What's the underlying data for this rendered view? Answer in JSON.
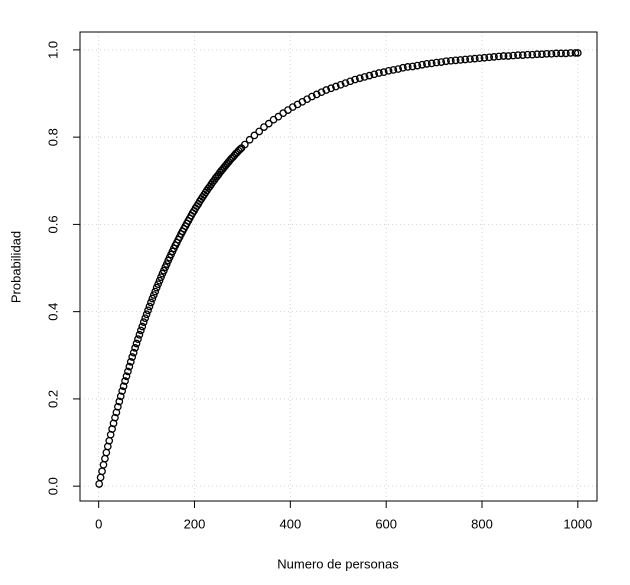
{
  "chart_data": {
    "type": "scatter",
    "xlabel": "Numero de personas",
    "ylabel": "Probabilidad",
    "x": [
      1,
      4,
      7,
      10,
      13,
      16,
      19,
      22,
      25,
      28,
      31,
      34,
      37,
      40,
      43,
      46,
      49,
      52,
      55,
      58,
      61,
      64,
      67,
      70,
      73,
      76,
      79,
      82,
      85,
      88,
      91,
      94,
      97,
      100,
      103,
      106,
      109,
      112,
      115,
      118,
      121,
      124,
      127,
      130,
      133,
      136,
      139,
      142,
      145,
      148,
      151,
      154,
      157,
      160,
      163,
      166,
      169,
      172,
      175,
      178,
      181,
      184,
      187,
      190,
      193,
      196,
      199,
      202,
      205,
      208,
      211,
      214,
      217,
      220,
      223,
      226,
      229,
      232,
      235,
      238,
      241,
      244,
      247,
      250,
      253,
      256,
      259,
      262,
      265,
      268,
      271,
      274,
      277,
      280,
      283,
      286,
      289,
      292,
      295,
      298,
      305,
      315,
      325,
      335,
      345,
      355,
      365,
      375,
      385,
      395,
      405,
      415,
      425,
      435,
      445,
      455,
      465,
      475,
      485,
      495,
      505,
      515,
      525,
      535,
      545,
      555,
      565,
      575,
      585,
      595,
      605,
      615,
      625,
      635,
      645,
      655,
      665,
      675,
      685,
      695,
      705,
      715,
      725,
      735,
      745,
      755,
      765,
      775,
      785,
      795,
      805,
      815,
      825,
      835,
      845,
      855,
      865,
      875,
      885,
      895,
      905,
      915,
      925,
      935,
      945,
      955,
      965,
      975,
      985,
      995,
      1000
    ],
    "values": [
      0.005,
      0.02,
      0.034,
      0.049,
      0.063,
      0.077,
      0.091,
      0.104,
      0.118,
      0.131,
      0.144,
      0.157,
      0.169,
      0.182,
      0.194,
      0.206,
      0.218,
      0.229,
      0.241,
      0.252,
      0.263,
      0.274,
      0.285,
      0.296,
      0.306,
      0.317,
      0.327,
      0.337,
      0.347,
      0.357,
      0.366,
      0.376,
      0.385,
      0.394,
      0.403,
      0.412,
      0.421,
      0.43,
      0.438,
      0.446,
      0.455,
      0.463,
      0.471,
      0.479,
      0.487,
      0.494,
      0.502,
      0.509,
      0.517,
      0.524,
      0.531,
      0.538,
      0.545,
      0.552,
      0.558,
      0.565,
      0.571,
      0.578,
      0.584,
      0.59,
      0.596,
      0.602,
      0.608,
      0.614,
      0.62,
      0.626,
      0.631,
      0.637,
      0.642,
      0.647,
      0.653,
      0.658,
      0.663,
      0.668,
      0.673,
      0.678,
      0.683,
      0.687,
      0.692,
      0.697,
      0.701,
      0.706,
      0.71,
      0.714,
      0.719,
      0.723,
      0.727,
      0.731,
      0.735,
      0.739,
      0.743,
      0.747,
      0.751,
      0.754,
      0.758,
      0.762,
      0.765,
      0.769,
      0.772,
      0.775,
      0.783,
      0.794,
      0.804,
      0.813,
      0.823,
      0.831,
      0.84,
      0.847,
      0.855,
      0.862,
      0.869,
      0.875,
      0.881,
      0.887,
      0.893,
      0.898,
      0.903,
      0.908,
      0.912,
      0.916,
      0.92,
      0.924,
      0.928,
      0.932,
      0.935,
      0.938,
      0.941,
      0.944,
      0.947,
      0.949,
      0.952,
      0.954,
      0.956,
      0.959,
      0.961,
      0.962,
      0.964,
      0.966,
      0.968,
      0.969,
      0.971,
      0.972,
      0.974,
      0.975,
      0.976,
      0.977,
      0.978,
      0.979,
      0.98,
      0.981,
      0.982,
      0.983,
      0.984,
      0.985,
      0.986,
      0.986,
      0.987,
      0.988,
      0.988,
      0.989,
      0.989,
      0.99,
      0.99,
      0.991,
      0.991,
      0.992,
      0.992,
      0.992,
      0.993,
      0.993,
      0.993
    ],
    "color": "#000000",
    "xlim": [
      -39,
      1040
    ],
    "ylim": [
      -0.034,
      1.041
    ],
    "xticks": [
      0,
      200,
      400,
      600,
      800,
      1000
    ],
    "yticks": [
      {
        "value": 0,
        "label": "0.0"
      },
      0.2,
      0.4,
      0.6,
      0.8,
      {
        "value": 1,
        "label": "1.0"
      }
    ],
    "grid": true
  }
}
